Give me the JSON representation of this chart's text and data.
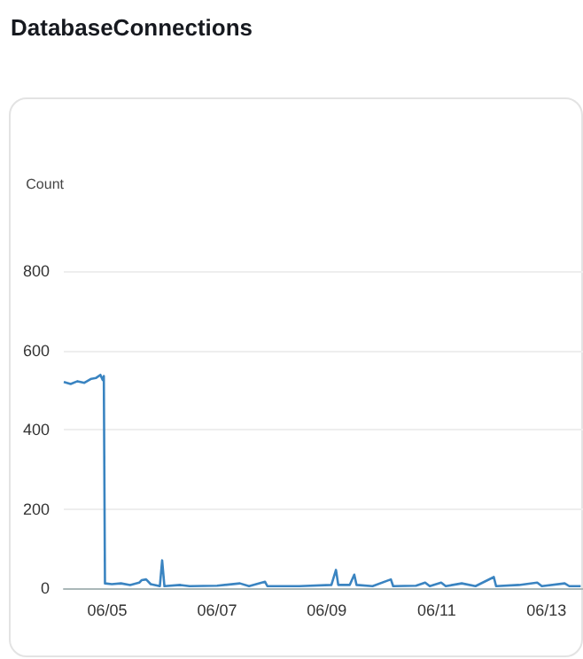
{
  "chart_data": {
    "type": "line",
    "title": "DatabaseConnections",
    "ylabel": "Count",
    "x": [
      "--06-04T05:00",
      "--06-04T08:00",
      "--06-04T11:00",
      "--06-04T14:00",
      "--06-04T17:00",
      "--06-04T19:00",
      "--06-04T21:00",
      "--06-04T22:00",
      "--06-04T22:30",
      "--06-04T23:00",
      "--06-05T02:00",
      "--06-05T06:00",
      "--06-05T10:00",
      "--06-05T14:00",
      "--06-05T15:00",
      "--06-05T17:00",
      "--06-05T19:00",
      "--06-05T23:00",
      "--06-06T00:00",
      "--06-06T01:00",
      "--06-06T08:00",
      "--06-06T12:00",
      "--06-07T00:00",
      "--06-07T10:00",
      "--06-07T14:00",
      "--06-07T21:00",
      "--06-07T22:00",
      "--06-08T12:00",
      "--06-09T02:00",
      "--06-09T04:00",
      "--06-09T05:00",
      "--06-09T10:00",
      "--06-09T12:00",
      "--06-09T13:00",
      "--06-09T20:00",
      "--06-10T04:00",
      "--06-10T05:00",
      "--06-10T15:00",
      "--06-10T19:00",
      "--06-10T21:00",
      "--06-11T02:00",
      "--06-11T04:00",
      "--06-11T11:00",
      "--06-11T17:00",
      "--06-12T01:00",
      "--06-12T02:00",
      "--06-12T12:00",
      "--06-12T20:00",
      "--06-12T22:00",
      "--06-13T08:00",
      "--06-13T10:00",
      "--06-13T15:00"
    ],
    "series": [
      {
        "color": "#3a84c1",
        "values": [
          520,
          515,
          522,
          518,
          528,
          530,
          538,
          525,
          535,
          12,
          10,
          12,
          8,
          14,
          20,
          22,
          10,
          5,
          70,
          5,
          8,
          5,
          6,
          12,
          5,
          16,
          5,
          5,
          8,
          46,
          8,
          8,
          34,
          8,
          5,
          22,
          5,
          6,
          14,
          5,
          14,
          5,
          12,
          5,
          28,
          5,
          8,
          14,
          5,
          12,
          5,
          5
        ]
      }
    ],
    "xlim": [
      "--06-04T05:00",
      "--06-13T16:00"
    ],
    "xticks": [
      {
        "value": "--06-05",
        "label": "06/05"
      },
      {
        "value": "--06-07",
        "label": "06/07"
      },
      {
        "value": "--06-09",
        "label": "06/09"
      },
      {
        "value": "--06-11",
        "label": "06/11"
      },
      {
        "value": "--06-13",
        "label": "06/13"
      }
    ],
    "ylim": [
      0,
      800
    ],
    "yticks": [
      0,
      200,
      400,
      600,
      800
    ],
    "grid": "y",
    "marker": "none",
    "line_style": "solid"
  }
}
